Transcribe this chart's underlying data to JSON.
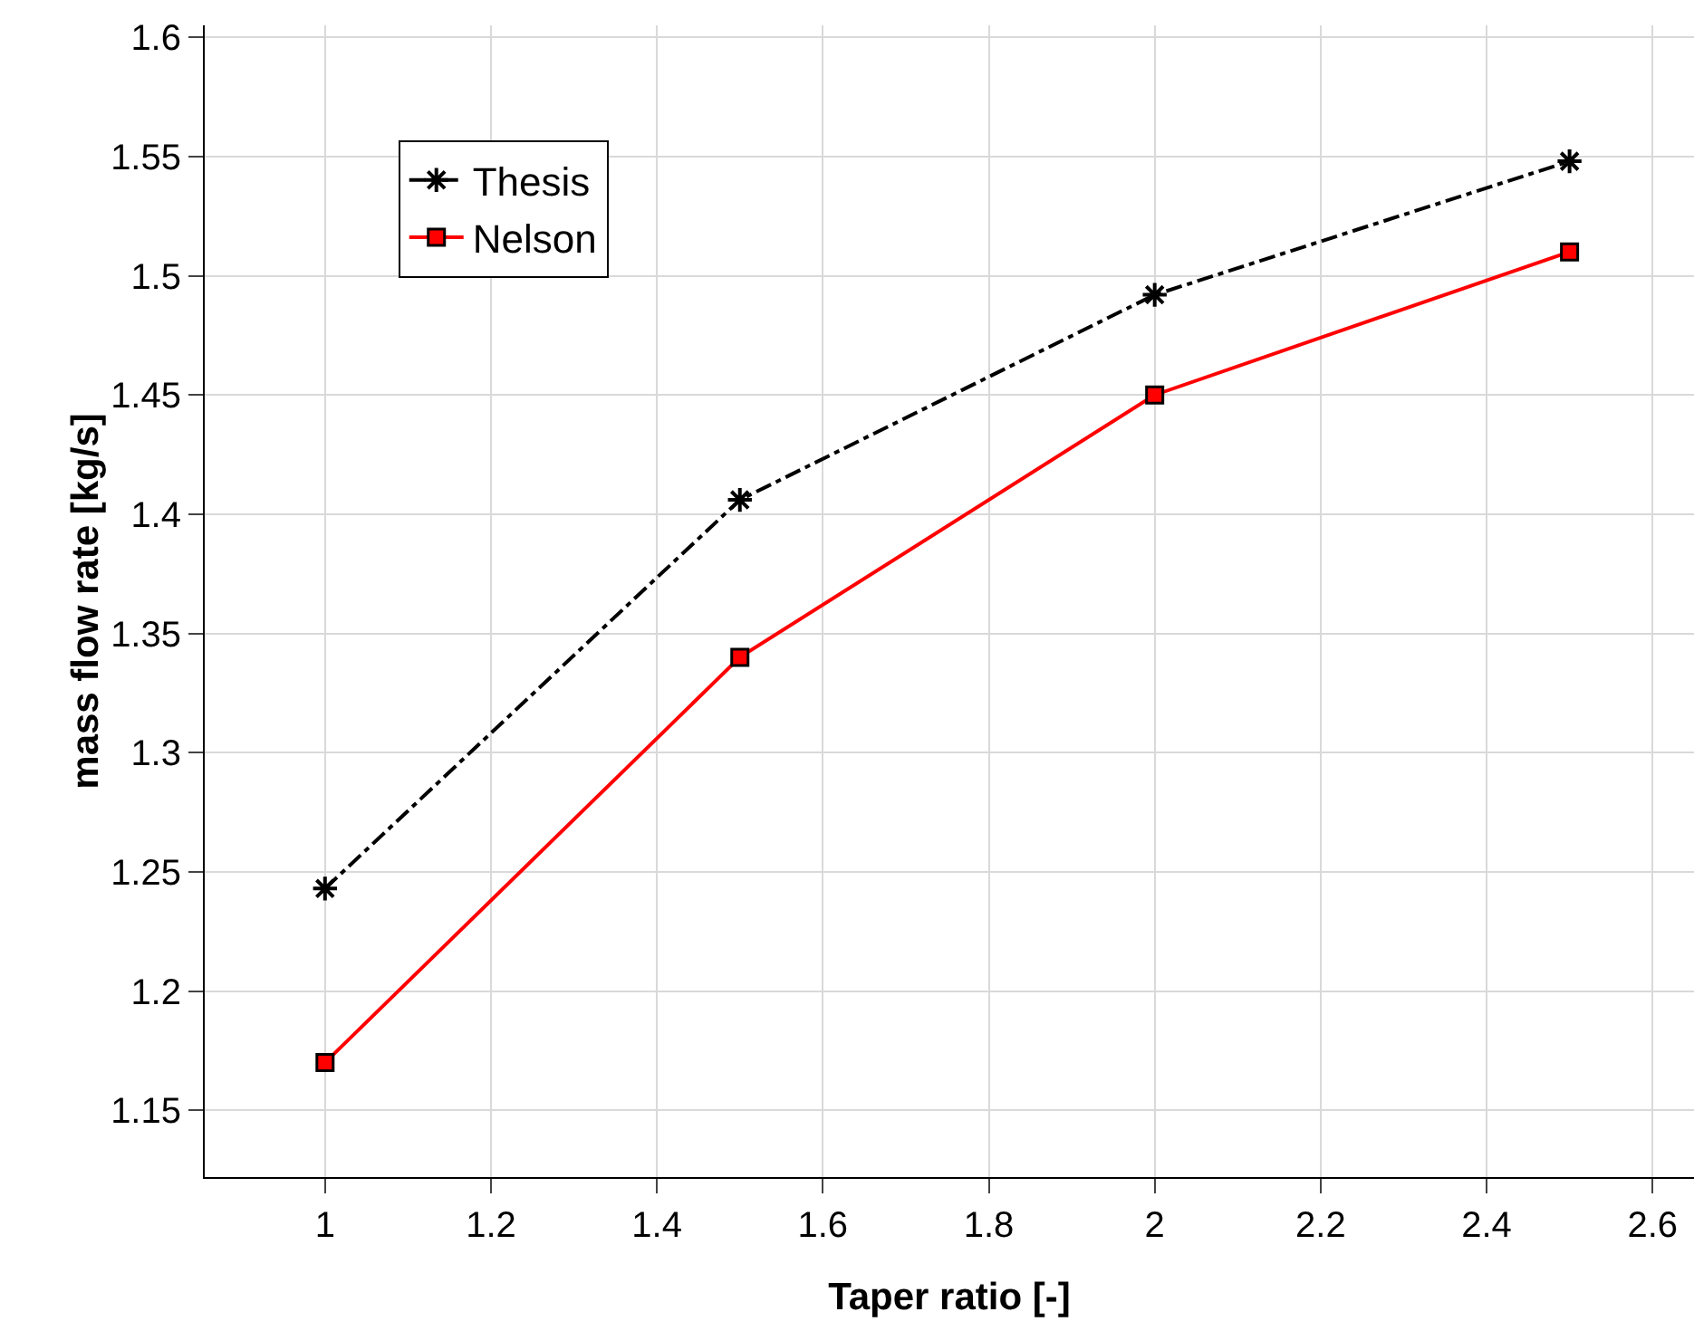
{
  "chart_data": {
    "type": "line",
    "xlabel": "Taper ratio [-]",
    "ylabel": "mass flow rate [kg/s]",
    "x": [
      1,
      1.5,
      2,
      2.5
    ],
    "series": [
      {
        "name": "Thesis",
        "color": "#000000",
        "values": [
          1.243,
          1.406,
          1.492,
          1.548
        ],
        "marker": "cross",
        "line_style": "dashed"
      },
      {
        "name": "Nelson",
        "color": "#ff0000",
        "values": [
          1.17,
          1.34,
          1.45,
          1.51
        ],
        "marker": "square",
        "line_style": "solid"
      }
    ],
    "xlim": [
      0.855,
      2.65
    ],
    "xticks": [
      1,
      1.2,
      1.4,
      1.6,
      1.8,
      2,
      2.2,
      2.4,
      2.6
    ],
    "ylim": [
      1.122,
      1.605
    ],
    "yticks": [
      1.15,
      1.2,
      1.25,
      1.3,
      1.35,
      1.4,
      1.45,
      1.5,
      1.55,
      1.6
    ],
    "grid": true,
    "legend": "top left"
  }
}
